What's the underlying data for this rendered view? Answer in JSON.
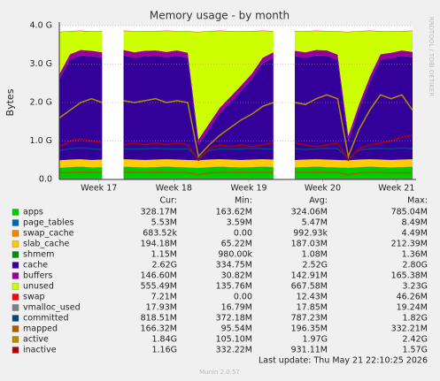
{
  "chart_data": {
    "type": "area",
    "title": "Memory usage - by month",
    "ylabel": "Bytes",
    "side_text": "RRDTOOL / TOBI OETIKER",
    "footer": "Last update: Thu May 21 22:10:25 2026",
    "version": "Munin 2.0.57",
    "legend_header": [
      "Cur:",
      "Min:",
      "Avg:",
      "Max:"
    ],
    "grid": true,
    "xlim": [
      0,
      33
    ],
    "xticks": [
      {
        "value": 3.7,
        "label": "Week 17"
      },
      {
        "value": 10.7,
        "label": "Week 18"
      },
      {
        "value": 17.7,
        "label": "Week 19"
      },
      {
        "value": 24.6,
        "label": "Week 20"
      },
      {
        "value": 31.5,
        "label": "Week 21"
      }
    ],
    "ylim": [
      0,
      4
    ],
    "yticks": [
      {
        "value": 0,
        "label": "0.0"
      },
      {
        "value": 1,
        "label": "1.0 G"
      },
      {
        "value": 2,
        "label": "2.0 G"
      },
      {
        "value": 3,
        "label": "3.0 G"
      },
      {
        "value": 4,
        "label": "4.0 G"
      }
    ],
    "x": [
      0,
      1,
      2,
      3,
      4,
      5,
      6,
      7,
      8,
      9,
      10,
      11,
      12,
      13,
      14,
      15,
      16,
      17,
      18,
      19,
      20,
      21,
      22,
      23,
      24,
      25,
      26,
      27,
      28,
      29,
      30,
      31,
      32,
      33
    ],
    "series": [
      {
        "name": "apps",
        "color": "#00cc00",
        "style": "area",
        "cur": "328.17M",
        "min": "163.62M",
        "avg": "324.06M",
        "max": "785.04M",
        "values": [
          0.3,
          0.32,
          0.33,
          0.31,
          0.32,
          null,
          0.33,
          0.32,
          0.31,
          0.32,
          0.33,
          0.32,
          0.31,
          0.3,
          0.32,
          0.33,
          0.32,
          0.31,
          0.32,
          0.33,
          0.32,
          null,
          0.31,
          0.32,
          0.33,
          0.32,
          0.31,
          0.3,
          0.32,
          0.33,
          0.32,
          0.31,
          0.32,
          0.33
        ]
      },
      {
        "name": "page_tables",
        "color": "#0066b3",
        "style": "area",
        "cur": "5.53M",
        "min": "3.59M",
        "avg": "5.47M",
        "max": "8.49M",
        "values": [
          0.005,
          0.005,
          0.005,
          0.005,
          0.005,
          null,
          0.005,
          0.005,
          0.005,
          0.005,
          0.005,
          0.005,
          0.005,
          0.005,
          0.005,
          0.005,
          0.005,
          0.005,
          0.005,
          0.005,
          0.005,
          null,
          0.005,
          0.005,
          0.005,
          0.005,
          0.005,
          0.005,
          0.005,
          0.005,
          0.005,
          0.005,
          0.005,
          0.005
        ]
      },
      {
        "name": "swap_cache",
        "color": "#ff8000",
        "style": "area",
        "cur": "683.52k",
        "min": "0.00",
        "avg": "992.93k",
        "max": "4.49M",
        "values": [
          0.001,
          0.001,
          0.001,
          0.001,
          0.001,
          null,
          0.001,
          0.001,
          0.001,
          0.001,
          0.001,
          0.001,
          0.001,
          0.001,
          0.001,
          0.001,
          0.001,
          0.001,
          0.001,
          0.001,
          0.001,
          null,
          0.001,
          0.001,
          0.001,
          0.001,
          0.001,
          0.001,
          0.001,
          0.001,
          0.001,
          0.001,
          0.001,
          0.001
        ]
      },
      {
        "name": "slab_cache",
        "color": "#ffcc00",
        "style": "area",
        "cur": "194.18M",
        "min": "65.22M",
        "avg": "187.03M",
        "max": "212.39M",
        "values": [
          0.19,
          0.19,
          0.19,
          0.19,
          0.19,
          null,
          0.19,
          0.19,
          0.19,
          0.19,
          0.19,
          0.19,
          0.19,
          0.19,
          0.19,
          0.19,
          0.19,
          0.19,
          0.19,
          0.19,
          0.19,
          null,
          0.19,
          0.19,
          0.19,
          0.19,
          0.19,
          0.19,
          0.19,
          0.19,
          0.19,
          0.19,
          0.19,
          0.19
        ]
      },
      {
        "name": "shmem",
        "color": "#008f00",
        "style": "area",
        "cur": "1.15M",
        "min": "980.00k",
        "avg": "1.08M",
        "max": "1.36M",
        "values": [
          0.001,
          0.001,
          0.001,
          0.001,
          0.001,
          null,
          0.001,
          0.001,
          0.001,
          0.001,
          0.001,
          0.001,
          0.001,
          0.001,
          0.001,
          0.001,
          0.001,
          0.001,
          0.001,
          0.001,
          0.001,
          null,
          0.001,
          0.001,
          0.001,
          0.001,
          0.001,
          0.001,
          0.001,
          0.001,
          0.001,
          0.001,
          0.001,
          0.001
        ]
      },
      {
        "name": "cache",
        "color": "#330099",
        "style": "area",
        "cur": "2.62G",
        "min": "334.75M",
        "avg": "2.52G",
        "max": "2.80G",
        "values": [
          2.1,
          2.6,
          2.7,
          2.7,
          2.65,
          null,
          2.7,
          2.65,
          2.7,
          2.7,
          2.65,
          2.7,
          2.65,
          0.4,
          0.8,
          1.2,
          1.5,
          1.8,
          2.1,
          2.5,
          2.65,
          null,
          2.7,
          2.65,
          2.7,
          2.7,
          2.6,
          0.5,
          1.3,
          2.0,
          2.6,
          2.65,
          2.7,
          2.65
        ]
      },
      {
        "name": "buffers",
        "color": "#990099",
        "style": "area",
        "cur": "146.60M",
        "min": "30.82M",
        "avg": "142.91M",
        "max": "165.38M",
        "values": [
          0.14,
          0.14,
          0.14,
          0.14,
          0.14,
          null,
          0.14,
          0.14,
          0.14,
          0.14,
          0.14,
          0.14,
          0.14,
          0.14,
          0.14,
          0.14,
          0.14,
          0.14,
          0.14,
          0.14,
          0.14,
          null,
          0.14,
          0.14,
          0.14,
          0.14,
          0.14,
          0.14,
          0.14,
          0.14,
          0.14,
          0.14,
          0.14,
          0.14
        ]
      },
      {
        "name": "unused",
        "color": "#ccff00",
        "style": "area",
        "cur": "555.49M",
        "min": "135.76M",
        "avg": "667.58M",
        "max": "3.23G",
        "values": [
          1.093,
          0.593,
          0.493,
          0.493,
          0.543,
          null,
          0.493,
          0.543,
          0.493,
          0.493,
          0.543,
          0.493,
          0.543,
          2.793,
          2.393,
          1.993,
          1.693,
          1.393,
          1.093,
          0.693,
          0.543,
          null,
          0.493,
          0.543,
          0.493,
          0.493,
          0.593,
          2.693,
          1.893,
          1.193,
          0.593,
          0.543,
          0.493,
          0.543
        ]
      },
      {
        "name": "swap",
        "color": "#ff0000",
        "style": "area",
        "cur": "7.21M",
        "min": "0.00",
        "avg": "12.43M",
        "max": "46.26M",
        "values": [
          0.01,
          0.01,
          0.01,
          0.01,
          0.01,
          null,
          0.01,
          0.01,
          0.01,
          0.01,
          0.01,
          0.01,
          0.01,
          0.01,
          0.01,
          0.01,
          0.01,
          0.01,
          0.01,
          0.01,
          0.01,
          null,
          0.01,
          0.01,
          0.01,
          0.01,
          0.01,
          0.01,
          0.01,
          0.01,
          0.01,
          0.01,
          0.01,
          0.01
        ]
      },
      {
        "name": "vmalloc_used",
        "color": "#808080",
        "style": "line",
        "cur": "17.93M",
        "min": "16.79M",
        "avg": "17.85M",
        "max": "19.24M",
        "values": [
          0.018,
          0.018,
          0.018,
          0.018,
          0.018,
          null,
          0.018,
          0.018,
          0.018,
          0.018,
          0.018,
          0.018,
          0.018,
          0.018,
          0.018,
          0.018,
          0.018,
          0.018,
          0.018,
          0.018,
          0.018,
          null,
          0.018,
          0.018,
          0.018,
          0.018,
          0.018,
          0.018,
          0.018,
          0.018,
          0.018,
          0.018,
          0.018,
          0.018
        ]
      },
      {
        "name": "committed",
        "color": "#00487d",
        "style": "line",
        "cur": "818.51M",
        "min": "372.18M",
        "avg": "787.23M",
        "max": "1.82G",
        "values": [
          0.75,
          0.8,
          0.82,
          0.8,
          0.78,
          null,
          0.8,
          0.79,
          0.8,
          0.81,
          0.8,
          0.79,
          0.8,
          0.55,
          0.75,
          0.8,
          0.79,
          0.8,
          0.81,
          0.8,
          0.79,
          null,
          0.8,
          0.78,
          0.8,
          0.81,
          0.8,
          0.55,
          0.76,
          0.8,
          0.81,
          0.8,
          0.82,
          0.8
        ]
      },
      {
        "name": "mapped",
        "color": "#b35a00",
        "style": "line",
        "cur": "166.32M",
        "min": "95.54M",
        "avg": "196.35M",
        "max": "332.21M",
        "values": [
          0.17,
          0.18,
          0.19,
          0.18,
          0.18,
          null,
          0.19,
          0.18,
          0.18,
          0.19,
          0.18,
          0.18,
          0.18,
          0.12,
          0.17,
          0.18,
          0.18,
          0.19,
          0.18,
          0.18,
          0.19,
          null,
          0.18,
          0.18,
          0.19,
          0.18,
          0.18,
          0.12,
          0.17,
          0.18,
          0.18,
          0.17,
          0.17,
          0.17
        ]
      },
      {
        "name": "active",
        "color": "#b38f00",
        "style": "line",
        "cur": "1.84G",
        "min": "105.10M",
        "avg": "1.97G",
        "max": "2.42G",
        "values": [
          1.6,
          1.8,
          2.0,
          2.1,
          2.0,
          null,
          2.05,
          2.0,
          2.05,
          2.1,
          2.0,
          2.05,
          2.0,
          0.6,
          0.9,
          1.15,
          1.35,
          1.55,
          1.7,
          1.9,
          2.0,
          null,
          2.0,
          1.95,
          2.1,
          2.2,
          2.1,
          0.6,
          1.3,
          1.8,
          2.2,
          2.1,
          2.2,
          1.8
        ]
      },
      {
        "name": "inactive",
        "color": "#b30000",
        "style": "line",
        "cur": "1.16G",
        "min": "332.22M",
        "avg": "931.11M",
        "max": "1.57G",
        "values": [
          0.85,
          1.0,
          1.05,
          1.0,
          0.95,
          null,
          0.9,
          0.95,
          0.9,
          0.95,
          0.9,
          0.95,
          0.9,
          0.5,
          0.8,
          0.9,
          0.85,
          0.9,
          0.85,
          0.9,
          0.95,
          null,
          0.95,
          0.9,
          0.85,
          0.9,
          0.95,
          0.5,
          0.8,
          0.9,
          0.95,
          1.0,
          1.1,
          1.15
        ]
      }
    ]
  }
}
